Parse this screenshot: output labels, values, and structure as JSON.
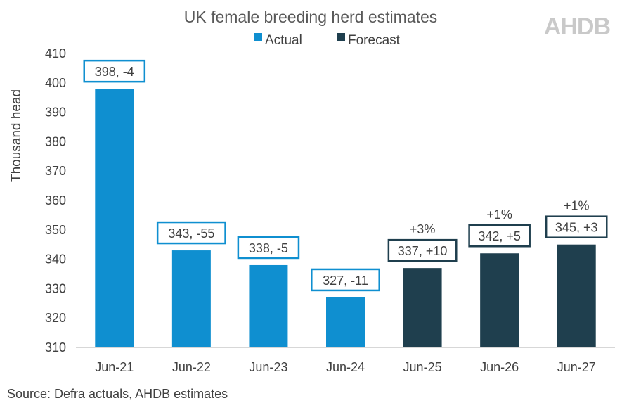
{
  "logo_text": "AHDB",
  "source_text": "Source: Defra actuals, AHDB estimates",
  "colors": {
    "actual": "#0f8fd0",
    "forecast": "#1f3f4e",
    "axis": "#bfbfbf"
  },
  "chart_data": {
    "type": "bar",
    "title": "UK female breeding herd estimates",
    "xlabel": "",
    "ylabel": "Thousand head",
    "ylim": [
      310,
      410
    ],
    "yticks": [
      310,
      320,
      330,
      340,
      350,
      360,
      370,
      380,
      390,
      400,
      410
    ],
    "grid": false,
    "legend_position": "top-center",
    "legend": [
      "Actual",
      "Forecast"
    ],
    "categories": [
      "Jun-21",
      "Jun-22",
      "Jun-23",
      "Jun-24",
      "Jun-25",
      "Jun-26",
      "Jun-27"
    ],
    "series": [
      {
        "name": "Actual",
        "values": [
          398,
          343,
          338,
          327,
          null,
          null,
          null
        ]
      },
      {
        "name": "Forecast",
        "values": [
          null,
          null,
          null,
          null,
          337,
          342,
          345
        ]
      }
    ],
    "data_labels": [
      "398, -4",
      "343, -55",
      "338, -5",
      "327, -11",
      "337, +10",
      "342, +5",
      "345, +3"
    ],
    "pct_labels": [
      "",
      "",
      "",
      "",
      "+3%",
      "+1%",
      "+1%"
    ]
  }
}
